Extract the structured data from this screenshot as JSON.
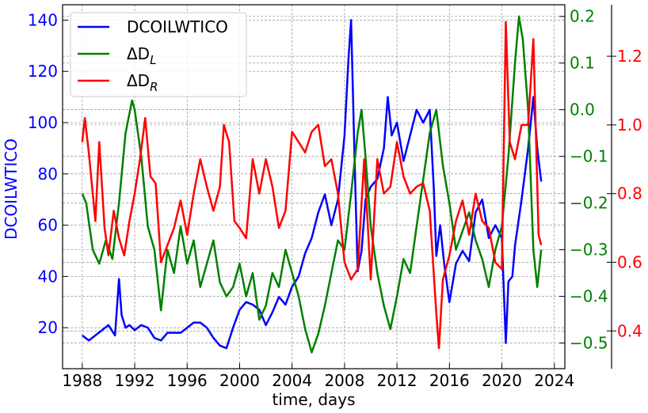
{
  "chart_data": {
    "type": "line",
    "xlabel": "time, days",
    "ylabel": "DCOILWTICO",
    "xlim": [
      1986.5,
      2024.8
    ],
    "grid": true,
    "legend": "top-left",
    "x_ticks": [
      1988,
      1992,
      1996,
      2000,
      2004,
      2008,
      2012,
      2016,
      2020,
      2024
    ],
    "axes": {
      "left": {
        "ylim": [
          4,
          146
        ],
        "ticks": [
          20,
          40,
          60,
          80,
          100,
          120,
          140
        ],
        "tick_labels": [
          "20",
          "40",
          "60",
          "80",
          "100",
          "120",
          "140"
        ],
        "color": "#0000ff"
      },
      "right1": {
        "ylim": [
          -0.555,
          0.225
        ],
        "ticks": [
          -0.5,
          -0.4,
          -0.3,
          -0.2,
          -0.1,
          0.0,
          0.1,
          0.2
        ],
        "tick_labels": [
          "−0.5",
          "−0.4",
          "−0.3",
          "−0.2",
          "−0.1",
          "0.0",
          "0.1",
          "0.2"
        ],
        "color": "#008000"
      },
      "right2": {
        "ylim": [
          0.29,
          1.35
        ],
        "ticks": [
          0.4,
          0.6,
          0.8,
          1.0,
          1.2
        ],
        "tick_labels": [
          "0.4",
          "0.6",
          "0.8",
          "1.0",
          "1.2"
        ],
        "color": "#ff0000"
      }
    },
    "legend_entries": [
      {
        "label": "DCOILWTICO",
        "color": "#0000ff"
      },
      {
        "label": "ΔD",
        "sub": "L",
        "color": "#008000"
      },
      {
        "label": "ΔD",
        "sub": "R",
        "color": "#ff0000"
      }
    ],
    "series": [
      {
        "name": "DCOILWTICO",
        "axis": "left",
        "color": "#0000ff",
        "x": [
          1988.0,
          1988.5,
          1989.0,
          1989.5,
          1990.0,
          1990.5,
          1990.8,
          1991.0,
          1991.3,
          1991.6,
          1992.0,
          1992.5,
          1993.0,
          1993.5,
          1994.0,
          1994.5,
          1995.0,
          1995.5,
          1996.0,
          1996.5,
          1997.0,
          1997.5,
          1998.0,
          1998.5,
          1999.0,
          1999.5,
          2000.0,
          2000.5,
          2001.0,
          2001.5,
          2002.0,
          2002.5,
          2003.0,
          2003.5,
          2004.0,
          2004.5,
          2005.0,
          2005.5,
          2006.0,
          2006.5,
          2007.0,
          2007.5,
          2008.0,
          2008.3,
          2008.5,
          2008.8,
          2009.0,
          2009.3,
          2009.6,
          2010.0,
          2010.5,
          2011.0,
          2011.3,
          2011.6,
          2012.0,
          2012.5,
          2013.0,
          2013.5,
          2014.0,
          2014.5,
          2014.8,
          2015.0,
          2015.3,
          2015.6,
          2016.0,
          2016.5,
          2017.0,
          2017.5,
          2018.0,
          2018.5,
          2019.0,
          2019.5,
          2020.0,
          2020.3,
          2020.5,
          2020.8,
          2021.0,
          2021.5,
          2022.0,
          2022.4,
          2022.7,
          2023.0
        ],
        "y": [
          17,
          15,
          17,
          19,
          21,
          17,
          39,
          25,
          20,
          21,
          19,
          21,
          20,
          16,
          15,
          18,
          18,
          18,
          20,
          22,
          22,
          20,
          16,
          13,
          12,
          20,
          27,
          30,
          29,
          27,
          21,
          26,
          32,
          29,
          36,
          40,
          49,
          55,
          65,
          72,
          60,
          70,
          95,
          125,
          140,
          80,
          42,
          50,
          70,
          75,
          78,
          90,
          110,
          95,
          100,
          85,
          95,
          105,
          100,
          105,
          75,
          48,
          60,
          45,
          30,
          45,
          50,
          46,
          65,
          70,
          55,
          60,
          55,
          14,
          38,
          40,
          52,
          70,
          90,
          110,
          90,
          77
        ]
      },
      {
        "name": "ΔDL",
        "axis": "right1",
        "color": "#008000",
        "x": [
          1988.0,
          1988.3,
          1988.8,
          1989.3,
          1989.8,
          1990.3,
          1990.8,
          1991.3,
          1991.8,
          1992.0,
          1992.5,
          1993.0,
          1993.5,
          1994.0,
          1994.5,
          1995.0,
          1995.5,
          1996.0,
          1996.5,
          1997.0,
          1997.5,
          1998.0,
          1998.5,
          1999.0,
          1999.5,
          2000.0,
          2000.5,
          2001.0,
          2001.5,
          2002.0,
          2002.5,
          2003.0,
          2003.5,
          2004.0,
          2004.5,
          2005.0,
          2005.5,
          2006.0,
          2006.5,
          2007.0,
          2007.5,
          2008.0,
          2008.5,
          2009.0,
          2009.3,
          2009.6,
          2010.0,
          2010.5,
          2011.0,
          2011.5,
          2012.0,
          2012.5,
          2013.0,
          2013.5,
          2014.0,
          2014.5,
          2015.0,
          2015.5,
          2016.0,
          2016.5,
          2017.0,
          2017.5,
          2018.0,
          2018.5,
          2019.0,
          2019.5,
          2020.0,
          2020.5,
          2021.0,
          2021.3,
          2021.6,
          2022.0,
          2022.4,
          2022.7,
          2023.0
        ],
        "y": [
          -0.18,
          -0.2,
          -0.3,
          -0.33,
          -0.28,
          -0.32,
          -0.2,
          -0.05,
          0.02,
          0.0,
          -0.1,
          -0.25,
          -0.3,
          -0.43,
          -0.3,
          -0.35,
          -0.25,
          -0.33,
          -0.28,
          -0.38,
          -0.33,
          -0.28,
          -0.37,
          -0.4,
          -0.38,
          -0.33,
          -0.4,
          -0.35,
          -0.45,
          -0.42,
          -0.35,
          -0.38,
          -0.3,
          -0.35,
          -0.4,
          -0.47,
          -0.52,
          -0.48,
          -0.42,
          -0.35,
          -0.28,
          -0.3,
          -0.18,
          -0.05,
          0.0,
          -0.1,
          -0.25,
          -0.35,
          -0.42,
          -0.47,
          -0.4,
          -0.32,
          -0.35,
          -0.25,
          -0.15,
          -0.05,
          0.0,
          -0.12,
          -0.2,
          -0.3,
          -0.26,
          -0.22,
          -0.28,
          -0.32,
          -0.38,
          -0.3,
          -0.25,
          -0.1,
          0.1,
          0.2,
          0.15,
          0.0,
          -0.3,
          -0.38,
          -0.3
        ]
      },
      {
        "name": "ΔDR",
        "axis": "right2",
        "color": "#ff0000",
        "x": [
          1988.0,
          1988.2,
          1988.5,
          1989.0,
          1989.3,
          1989.7,
          1990.0,
          1990.4,
          1990.8,
          1991.2,
          1991.6,
          1992.0,
          1992.4,
          1992.8,
          1993.2,
          1993.6,
          1994.0,
          1994.5,
          1995.0,
          1995.5,
          1996.0,
          1996.5,
          1997.0,
          1997.5,
          1998.0,
          1998.5,
          1998.8,
          1999.2,
          1999.6,
          2000.0,
          2000.5,
          2001.0,
          2001.5,
          2002.0,
          2002.5,
          2003.0,
          2003.5,
          2004.0,
          2004.5,
          2005.0,
          2005.5,
          2006.0,
          2006.5,
          2007.0,
          2007.5,
          2008.0,
          2008.5,
          2009.0,
          2009.5,
          2010.0,
          2010.5,
          2011.0,
          2011.5,
          2012.0,
          2012.5,
          2013.0,
          2013.5,
          2014.0,
          2014.5,
          2015.0,
          2015.2,
          2015.5,
          2016.0,
          2016.5,
          2017.0,
          2017.5,
          2018.0,
          2018.5,
          2019.0,
          2019.5,
          2020.0,
          2020.3,
          2020.6,
          2021.0,
          2021.5,
          2022.0,
          2022.4,
          2022.8,
          2023.0
        ],
        "y": [
          0.95,
          1.02,
          0.92,
          0.72,
          0.95,
          0.7,
          0.62,
          0.75,
          0.67,
          0.62,
          0.72,
          0.8,
          0.9,
          1.02,
          0.85,
          0.83,
          0.6,
          0.65,
          0.7,
          0.78,
          0.68,
          0.8,
          0.9,
          0.82,
          0.75,
          0.82,
          1.0,
          0.95,
          0.72,
          0.7,
          0.67,
          0.9,
          0.8,
          0.9,
          0.82,
          0.7,
          0.75,
          0.98,
          0.95,
          0.92,
          0.98,
          1.0,
          0.88,
          0.9,
          0.8,
          0.6,
          0.55,
          0.58,
          0.9,
          0.55,
          0.9,
          0.8,
          0.82,
          0.95,
          0.85,
          0.8,
          0.82,
          0.83,
          0.75,
          0.45,
          0.35,
          0.55,
          0.62,
          0.72,
          0.78,
          0.68,
          0.8,
          0.72,
          0.7,
          0.6,
          0.58,
          1.3,
          0.95,
          0.9,
          1.0,
          1.0,
          1.25,
          0.68,
          0.65
        ]
      }
    ]
  }
}
